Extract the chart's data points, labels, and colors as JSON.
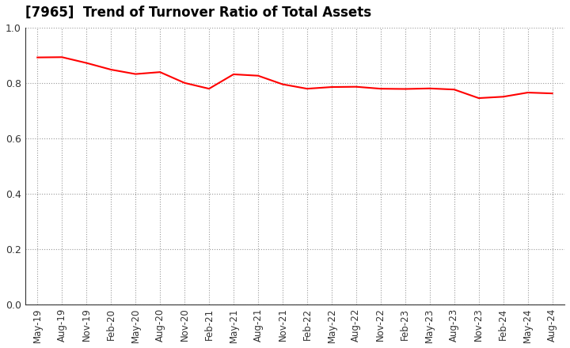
{
  "title": "[7965]  Trend of Turnover Ratio of Total Assets",
  "line_color": "#FF0000",
  "background_color": "#FFFFFF",
  "grid_color": "#999999",
  "ylim": [
    0.0,
    1.0
  ],
  "yticks": [
    0.0,
    0.2,
    0.4,
    0.6,
    0.8,
    1.0
  ],
  "x_labels": [
    "May-19",
    "Aug-19",
    "Nov-19",
    "Feb-20",
    "May-20",
    "Aug-20",
    "Nov-20",
    "Feb-21",
    "May-21",
    "Aug-21",
    "Nov-21",
    "Feb-22",
    "May-22",
    "Aug-22",
    "Nov-22",
    "Feb-23",
    "May-23",
    "Aug-23",
    "Nov-23",
    "Feb-24",
    "May-24",
    "Aug-24"
  ],
  "values": [
    0.892,
    0.893,
    0.872,
    0.848,
    0.832,
    0.839,
    0.8,
    0.779,
    0.831,
    0.826,
    0.795,
    0.779,
    0.785,
    0.786,
    0.779,
    0.778,
    0.78,
    0.776,
    0.745,
    0.75,
    0.765,
    0.762
  ],
  "title_fontsize": 12,
  "tick_fontsize": 8.5,
  "ytick_fontsize": 9,
  "line_width": 1.5
}
